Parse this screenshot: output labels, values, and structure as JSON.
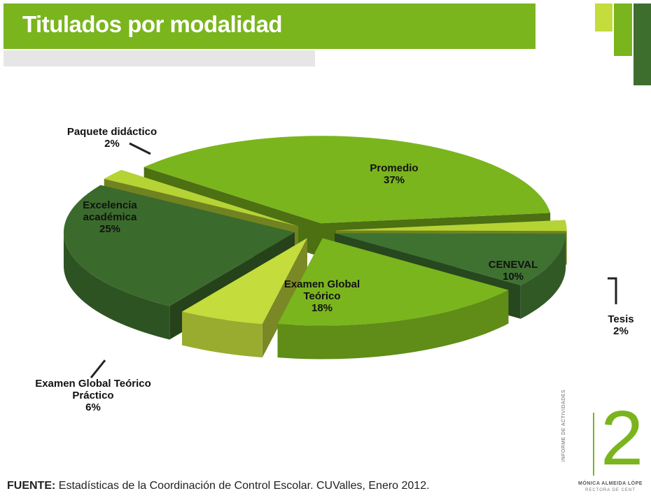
{
  "chart_data": {
    "type": "pie",
    "title": "Titulados por modalidad",
    "categories": [
      "Promedio",
      "Tesis",
      "CENEVAL",
      "Examen Global Teórico",
      "Examen Global Teórico Práctico",
      "Excelencia académica",
      "Paquete didáctico"
    ],
    "values": [
      37,
      2,
      10,
      18,
      6,
      25,
      2
    ],
    "value_labels": [
      "37%",
      "2%",
      "10%",
      "18%",
      "6%",
      "25%",
      "2%"
    ],
    "colors": [
      "#7ab51d",
      "#b5d334",
      "#3f7231",
      "#7ab51d",
      "#c4dc3c",
      "#3b6b2c",
      "#b5d334"
    ],
    "source_label": "FUENTE:",
    "source": "Estadísticas de la Coordinación de Control Escolar. CUValles, Enero 2012."
  },
  "logo": {
    "number": "2",
    "vertical": "INFORME DE ACTIVIDADES",
    "name": "MÓNICA ALMEIDA LÓPE",
    "role": "RECTORA DE CENT"
  }
}
